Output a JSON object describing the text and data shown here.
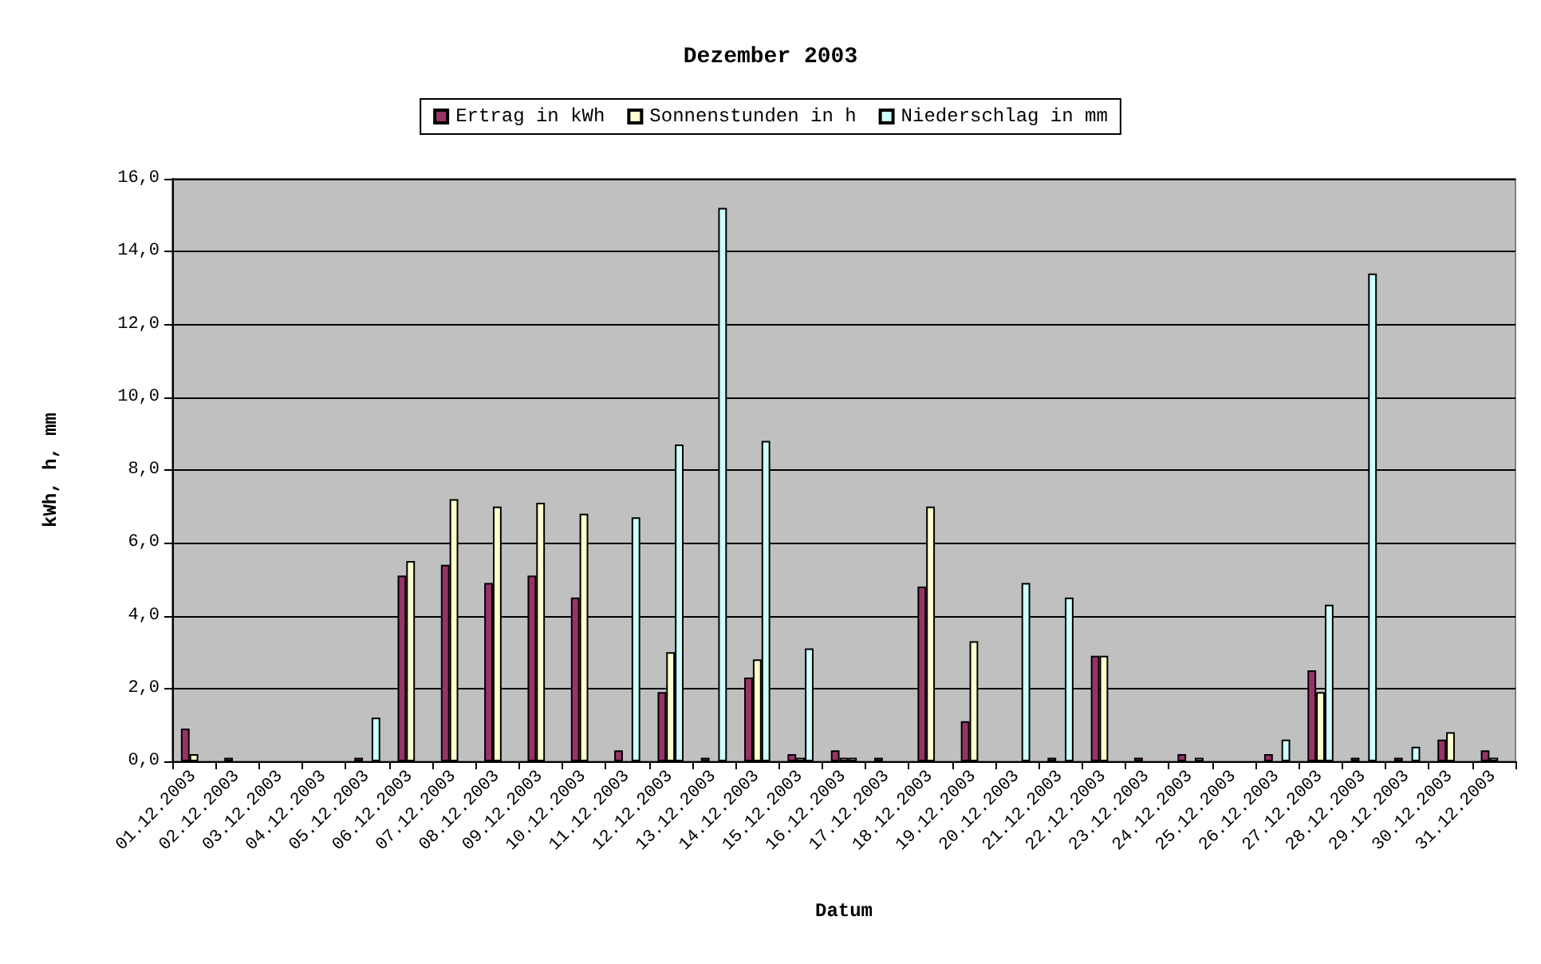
{
  "chart_data": {
    "type": "bar",
    "title": "Dezember 2003",
    "xlabel": "Datum",
    "ylabel": "kWh, h, mm",
    "categories": [
      "01.12.2003",
      "02.12.2003",
      "03.12.2003",
      "04.12.2003",
      "05.12.2003",
      "06.12.2003",
      "07.12.2003",
      "08.12.2003",
      "09.12.2003",
      "10.12.2003",
      "11.12.2003",
      "12.12.2003",
      "13.12.2003",
      "14.12.2003",
      "15.12.2003",
      "16.12.2003",
      "17.12.2003",
      "18.12.2003",
      "19.12.2003",
      "20.12.2003",
      "21.12.2003",
      "22.12.2003",
      "23.12.2003",
      "24.12.2003",
      "25.12.2003",
      "26.12.2003",
      "27.12.2003",
      "28.12.2003",
      "29.12.2003",
      "30.12.2003",
      "31.12.2003"
    ],
    "series": [
      {
        "name": "Ertrag in kWh",
        "color": "#993366",
        "values": [
          0.9,
          0.1,
          0,
          0,
          0.1,
          5.1,
          5.4,
          4.9,
          5.1,
          4.5,
          0.3,
          1.9,
          0.1,
          2.3,
          0.2,
          0.3,
          0.1,
          4.8,
          1.1,
          0,
          0.1,
          2.9,
          0.1,
          0.2,
          0,
          0.2,
          2.5,
          0.1,
          0.1,
          0.6,
          0.3
        ]
      },
      {
        "name": "Sonnenstunden in h",
        "color": "#ffffcc",
        "values": [
          0.2,
          0,
          0,
          0,
          0,
          5.5,
          7.2,
          7.0,
          7.1,
          6.8,
          0,
          3.0,
          0,
          2.8,
          0.1,
          0.1,
          0,
          7.0,
          3.3,
          0,
          0,
          2.9,
          0,
          0,
          0,
          0,
          1.9,
          0,
          0,
          0.8,
          0.1
        ]
      },
      {
        "name": "Niederschlag in mm",
        "color": "#ccffff",
        "values": [
          0,
          0,
          0,
          0,
          1.2,
          0,
          0,
          0,
          0,
          0,
          6.7,
          8.7,
          15.2,
          8.8,
          3.1,
          0.1,
          0,
          0,
          0,
          4.9,
          4.5,
          0,
          0,
          0.1,
          0,
          0.6,
          4.3,
          13.4,
          0.4,
          0,
          0
        ]
      }
    ],
    "ylim": [
      0,
      16
    ],
    "yticks": [
      {
        "value": 0,
        "label": "0,0"
      },
      {
        "value": 2,
        "label": "2,0"
      },
      {
        "value": 4,
        "label": "4,0"
      },
      {
        "value": 6,
        "label": "6,0"
      },
      {
        "value": 8,
        "label": "8,0"
      },
      {
        "value": 10,
        "label": "10,0"
      },
      {
        "value": 12,
        "label": "12,0"
      },
      {
        "value": 14,
        "label": "14,0"
      },
      {
        "value": 16,
        "label": "16,0"
      }
    ],
    "grid": "y",
    "legend": "top"
  }
}
